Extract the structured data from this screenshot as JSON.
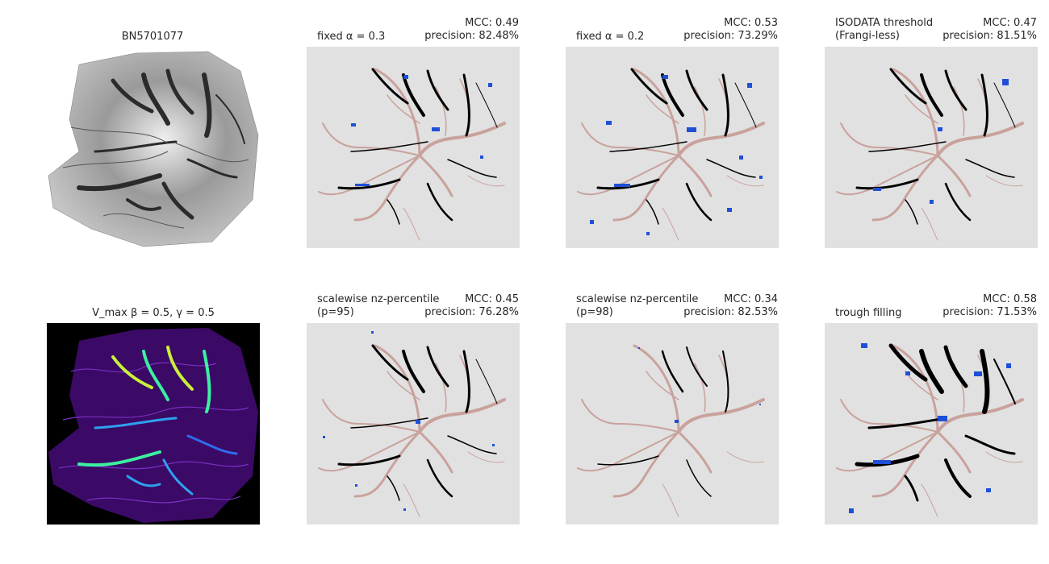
{
  "panels": [
    {
      "id": "raw",
      "title": "BN5701077"
    },
    {
      "id": "a03",
      "title_left": [
        "fixed α = 0.3"
      ],
      "mcc": "MCC: 0.49",
      "precision": "precision: 82.48%"
    },
    {
      "id": "a02",
      "title_left": [
        "fixed α = 0.2"
      ],
      "mcc": "MCC: 0.53",
      "precision": "precision: 73.29%"
    },
    {
      "id": "iso",
      "title_left": [
        "ISODATA threshold",
        "(Frangi-less)"
      ],
      "mcc": "MCC: 0.47",
      "precision": "precision: 81.51%"
    },
    {
      "id": "vmax",
      "title": "V_max β = 0.5, γ = 0.5"
    },
    {
      "id": "p95",
      "title_left": [
        "scalewise nz-percentile",
        "(p=95)"
      ],
      "mcc": "MCC: 0.45",
      "precision": "precision: 76.28%"
    },
    {
      "id": "p98",
      "title_left": [
        "scalewise nz-percentile",
        "(p=98)"
      ],
      "mcc": "MCC: 0.34",
      "precision": "precision: 82.53%"
    },
    {
      "id": "trough",
      "title_left": [
        "trough filling"
      ],
      "mcc": "MCC: 0.58",
      "precision": "precision: 71.53%"
    }
  ],
  "colors": {
    "panel_bg": "#e1e1e1",
    "true_positive": "#000000",
    "false_negative": "#c9a29c",
    "false_positive": "#1f4fd6",
    "vmax_bg": "#000000"
  }
}
